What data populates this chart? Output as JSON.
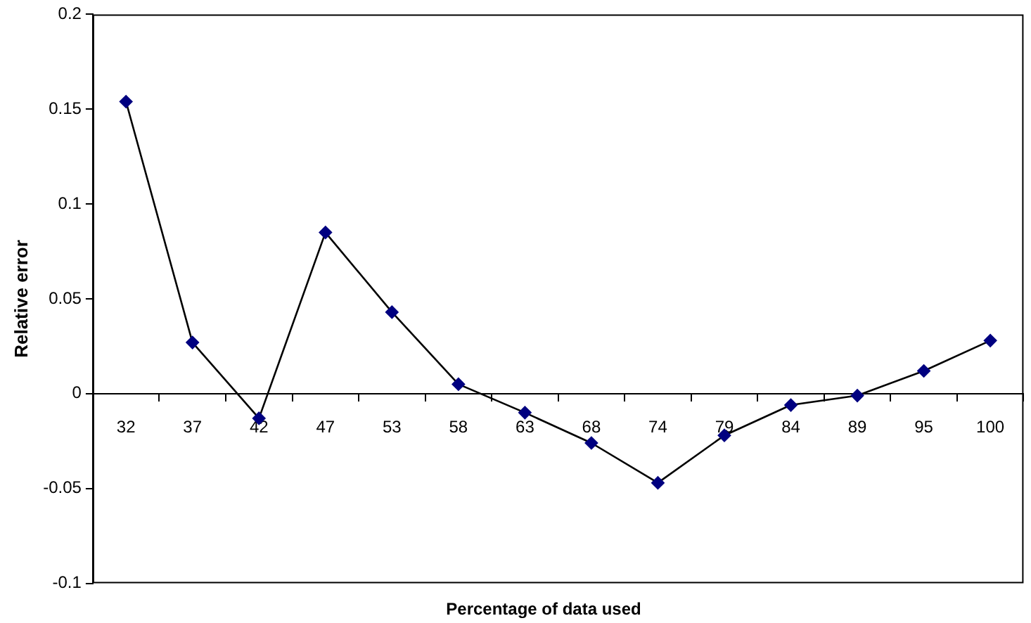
{
  "chart_data": {
    "type": "line",
    "xlabel": "Percentage of data used",
    "ylabel": "Relative error",
    "categories": [
      "32",
      "37",
      "42",
      "47",
      "53",
      "58",
      "63",
      "68",
      "74",
      "79",
      "84",
      "89",
      "95",
      "100"
    ],
    "series": [
      {
        "color": "#000080",
        "values": [
          0.154,
          0.027,
          -0.013,
          0.085,
          0.043,
          0.005,
          -0.01,
          -0.026,
          -0.047,
          -0.022,
          -0.006,
          -0.001,
          0.012,
          0.028
        ]
      }
    ],
    "ylim": [
      -0.1,
      0.2
    ],
    "yticks": [
      -0.1,
      -0.05,
      0,
      0.05,
      0.1,
      0.15,
      0.2
    ],
    "grid": false,
    "legend": false,
    "marker": "diamond",
    "line_style": "solid"
  }
}
